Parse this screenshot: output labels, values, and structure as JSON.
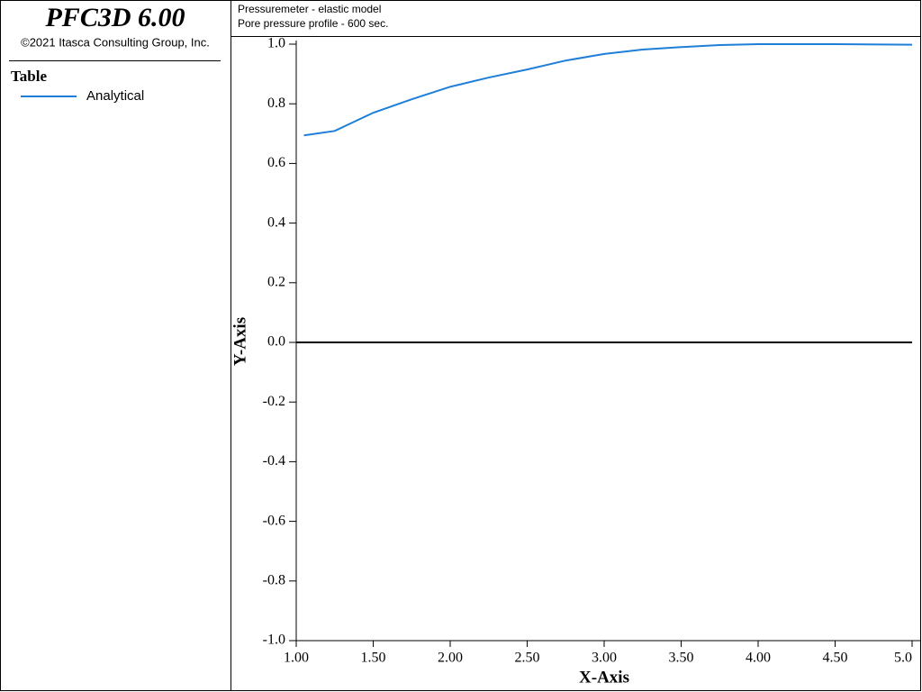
{
  "software": "PFC3D 6.00",
  "copyright": "©2021 Itasca Consulting Group, Inc.",
  "chart_data": {
    "type": "line",
    "title": "Pressuremeter - elastic model",
    "subtitle": "Pore pressure profile - 600 sec.",
    "legend_title": "Table",
    "x_label": "X-Axis",
    "y_label": "Y-Axis",
    "xlim": [
      1,
      5
    ],
    "ylim": [
      -1,
      1
    ],
    "xticks": [
      {
        "value": 1,
        "label": "1.00"
      },
      {
        "value": 1.5,
        "label": "1.50"
      },
      {
        "value": 2,
        "label": "2.00"
      },
      {
        "value": 2.5,
        "label": "2.50"
      },
      {
        "value": 3,
        "label": "3.00"
      },
      {
        "value": 3.5,
        "label": "3.50"
      },
      {
        "value": 4,
        "label": "4.00"
      },
      {
        "value": 4.5,
        "label": "4.50"
      },
      {
        "value": 5,
        "label": "5.0"
      }
    ],
    "yticks": [
      {
        "value": 1,
        "label": "1.0"
      },
      0.8,
      0.6,
      0.4,
      0.2,
      {
        "value": 0,
        "label": "0.0"
      },
      -0.2,
      -0.4,
      -0.6,
      -0.8,
      {
        "value": -1,
        "label": "-1.0"
      }
    ],
    "series": [
      {
        "name": "Analytical",
        "color": "#1f7fd8",
        "x": [
          1.05,
          1.25,
          1.5,
          1.75,
          2.0,
          2.25,
          2.5,
          2.75,
          3.0,
          3.25,
          3.5,
          3.75,
          4.0,
          4.5,
          5.0
        ],
        "values": [
          0.694,
          0.709,
          0.77,
          0.815,
          0.857,
          0.888,
          0.915,
          0.945,
          0.967,
          0.982,
          0.99,
          0.997,
          1.0,
          1.0,
          0.998
        ]
      }
    ]
  }
}
